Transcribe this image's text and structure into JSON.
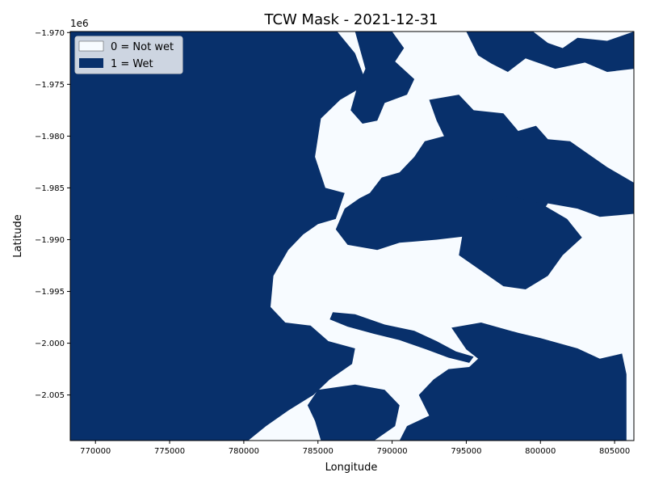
{
  "chart_data": {
    "type": "heatmap",
    "title": "TCW Mask - 2021-12-31",
    "xlabel": "Longitude",
    "ylabel": "Latitude",
    "y_offset_label": "1e6",
    "xlim": [
      768300,
      806300
    ],
    "ylim": [
      -2009400,
      -1969900
    ],
    "x_ticks": [
      770000,
      775000,
      780000,
      785000,
      790000,
      795000,
      800000,
      805000
    ],
    "x_tick_labels": [
      "770000",
      "775000",
      "780000",
      "785000",
      "790000",
      "795000",
      "800000",
      "805000"
    ],
    "y_ticks": [
      -1970000,
      -1975000,
      -1980000,
      -1985000,
      -1990000,
      -1995000,
      -2000000,
      -2005000
    ],
    "y_tick_labels": [
      "−1.970",
      "−1.975",
      "−1.980",
      "−1.985",
      "−1.990",
      "−1.995",
      "−2.000",
      "−2.005"
    ],
    "legend": {
      "placement": "upper-left",
      "entries": [
        {
          "label": "0 = Not wet",
          "color": "#f7fbff"
        },
        {
          "label": "1 = Wet",
          "color": "#08306b"
        }
      ]
    },
    "colors": {
      "not_wet": "#f7fbff",
      "wet": "#08306b"
    },
    "wet_regions": [
      {
        "name": "western-wet-area",
        "points": [
          [
            768300,
            -1969900
          ],
          [
            786300,
            -1969900
          ],
          [
            787500,
            -1972000
          ],
          [
            788300,
            -1975000
          ],
          [
            786500,
            -1976500
          ],
          [
            785200,
            -1978300
          ],
          [
            784800,
            -1982000
          ],
          [
            785500,
            -1985000
          ],
          [
            786800,
            -1985500
          ],
          [
            786200,
            -1988000
          ],
          [
            785000,
            -1988500
          ],
          [
            784000,
            -1989500
          ],
          [
            783000,
            -1991000
          ],
          [
            782000,
            -1993500
          ],
          [
            781800,
            -1996500
          ],
          [
            782800,
            -1998000
          ],
          [
            784500,
            -1998300
          ],
          [
            785700,
            -1999800
          ],
          [
            787500,
            -2000500
          ],
          [
            787300,
            -2002000
          ],
          [
            785800,
            -2003500
          ],
          [
            784700,
            -2005000
          ],
          [
            783000,
            -2006500
          ],
          [
            781500,
            -2008000
          ],
          [
            780300,
            -2009400
          ],
          [
            768300,
            -2009400
          ]
        ]
      },
      {
        "name": "north-central-wet-area",
        "points": [
          [
            787500,
            -1969900
          ],
          [
            790000,
            -1969900
          ],
          [
            790800,
            -1971500
          ],
          [
            790200,
            -1972800
          ],
          [
            791500,
            -1974500
          ],
          [
            791000,
            -1976000
          ],
          [
            789500,
            -1976800
          ],
          [
            789000,
            -1978500
          ],
          [
            788000,
            -1978800
          ],
          [
            787200,
            -1977500
          ],
          [
            787600,
            -1975500
          ],
          [
            788200,
            -1973500
          ]
        ]
      },
      {
        "name": "northeast-wet-patch",
        "points": [
          [
            795000,
            -1969900
          ],
          [
            799500,
            -1969900
          ],
          [
            800500,
            -1971000
          ],
          [
            801500,
            -1971500
          ],
          [
            802500,
            -1970500
          ],
          [
            804500,
            -1970800
          ],
          [
            806300,
            -1969900
          ],
          [
            806300,
            -1973500
          ],
          [
            804500,
            -1973800
          ],
          [
            803000,
            -1972900
          ],
          [
            801000,
            -1973500
          ],
          [
            799000,
            -1972500
          ],
          [
            797800,
            -1973800
          ],
          [
            796700,
            -1973000
          ],
          [
            795800,
            -1972200
          ]
        ]
      },
      {
        "name": "central-wet-area",
        "points": [
          [
            792500,
            -1976500
          ],
          [
            794500,
            -1976000
          ],
          [
            795500,
            -1977500
          ],
          [
            797500,
            -1977800
          ],
          [
            798500,
            -1979500
          ],
          [
            799700,
            -1979000
          ],
          [
            800500,
            -1980300
          ],
          [
            802000,
            -1980500
          ],
          [
            803000,
            -1981500
          ],
          [
            804500,
            -1983000
          ],
          [
            806300,
            -1984500
          ],
          [
            806300,
            -1987500
          ],
          [
            804000,
            -1987800
          ],
          [
            802500,
            -1987000
          ],
          [
            800500,
            -1986500
          ],
          [
            799800,
            -1988000
          ],
          [
            797500,
            -1988200
          ],
          [
            796000,
            -1989500
          ],
          [
            793000,
            -1990000
          ],
          [
            790500,
            -1990300
          ],
          [
            789000,
            -1991000
          ],
          [
            787000,
            -1990500
          ],
          [
            786200,
            -1989000
          ],
          [
            786800,
            -1987000
          ],
          [
            787800,
            -1986000
          ],
          [
            788500,
            -1985500
          ],
          [
            789300,
            -1984000
          ],
          [
            790500,
            -1983500
          ],
          [
            791500,
            -1982000
          ],
          [
            792200,
            -1980500
          ],
          [
            793500,
            -1980000
          ],
          [
            793000,
            -1978500
          ]
        ]
      },
      {
        "name": "mideast-wet-area",
        "points": [
          [
            795000,
            -1986500
          ],
          [
            798000,
            -1985800
          ],
          [
            800000,
            -1986500
          ],
          [
            801800,
            -1988000
          ],
          [
            802800,
            -1989800
          ],
          [
            801500,
            -1991500
          ],
          [
            800500,
            -1993500
          ],
          [
            799000,
            -1994800
          ],
          [
            797500,
            -1994500
          ],
          [
            796000,
            -1993000
          ],
          [
            794500,
            -1991500
          ],
          [
            794800,
            -1989000
          ]
        ]
      },
      {
        "name": "river-channel",
        "points": [
          [
            786000,
            -1997000
          ],
          [
            787500,
            -1997200
          ],
          [
            789500,
            -1998200
          ],
          [
            791500,
            -1998800
          ],
          [
            793000,
            -1999800
          ],
          [
            794300,
            -2000800
          ],
          [
            795500,
            -2001300
          ],
          [
            795200,
            -2001900
          ],
          [
            793800,
            -2001400
          ],
          [
            792300,
            -2000600
          ],
          [
            790500,
            -1999700
          ],
          [
            788800,
            -1999100
          ],
          [
            787000,
            -1998400
          ],
          [
            785800,
            -1997700
          ]
        ]
      },
      {
        "name": "southeast-wet-area",
        "points": [
          [
            794000,
            -1998500
          ],
          [
            796000,
            -1998000
          ],
          [
            798500,
            -1999000
          ],
          [
            800000,
            -1999500
          ],
          [
            802500,
            -2000500
          ],
          [
            804000,
            -2001500
          ],
          [
            805500,
            -2001000
          ],
          [
            805800,
            -2003000
          ],
          [
            805800,
            -2009400
          ],
          [
            790500,
            -2009400
          ],
          [
            791000,
            -2008000
          ],
          [
            792500,
            -2007000
          ],
          [
            791800,
            -2005000
          ],
          [
            792800,
            -2003500
          ],
          [
            793800,
            -2002500
          ],
          [
            795200,
            -2002300
          ],
          [
            795800,
            -2001500
          ],
          [
            795000,
            -2000600
          ]
        ]
      },
      {
        "name": "southwest-wet-patch",
        "points": [
          [
            785000,
            -2004500
          ],
          [
            787500,
            -2004000
          ],
          [
            789500,
            -2004500
          ],
          [
            790500,
            -2006000
          ],
          [
            790200,
            -2008000
          ],
          [
            788800,
            -2009400
          ],
          [
            785200,
            -2009400
          ],
          [
            784800,
            -2007500
          ],
          [
            784300,
            -2006000
          ]
        ]
      }
    ]
  }
}
